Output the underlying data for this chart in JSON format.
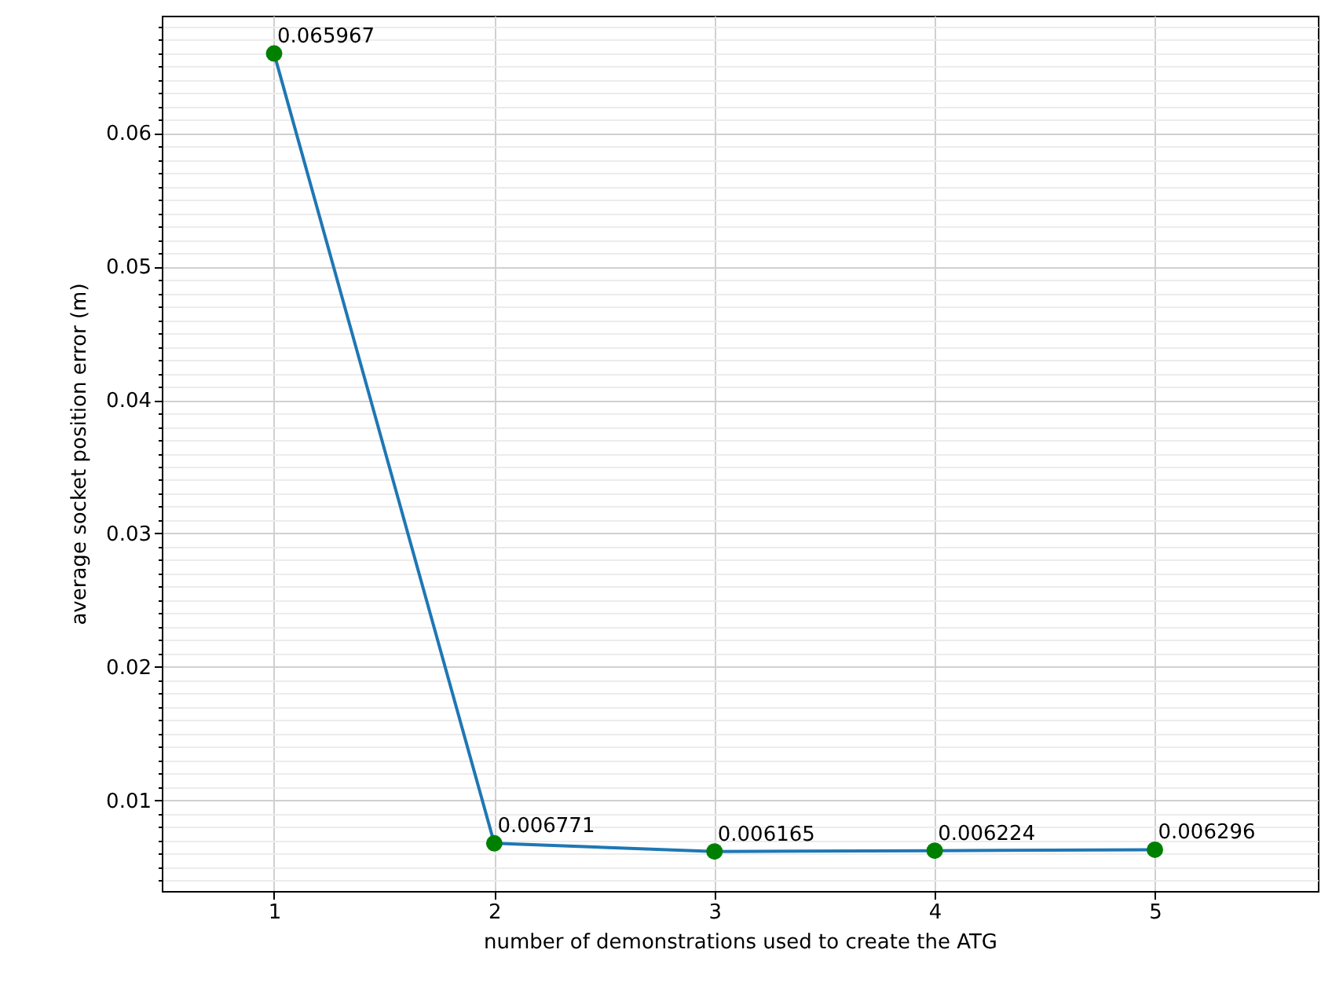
{
  "chart_data": {
    "type": "line",
    "xlabel": "number of demonstrations used to create the ATG",
    "ylabel": "average socket position error (m)",
    "x": [
      1,
      2,
      3,
      4,
      5
    ],
    "series": [
      {
        "color": "#1f77b4",
        "colors": [
          "#008000",
          "#008000",
          "#008000",
          "#008000",
          "#008000"
        ],
        "values": [
          0.065967,
          0.006771,
          0.006165,
          0.006224,
          0.006296
        ]
      }
    ],
    "marker": "circle",
    "data_labels": true,
    "grid": true,
    "xlim": [
      0.49,
      5.74
    ],
    "xticks": [
      1,
      2,
      3,
      4,
      5
    ],
    "ylim": [
      0.0032,
      0.0688
    ],
    "yticks": [
      {
        "value": 0.004,
        "label": null
      },
      {
        "value": 0.005,
        "label": null
      },
      {
        "value": 0.006,
        "label": null
      },
      {
        "value": 0.007,
        "label": null
      },
      {
        "value": 0.008,
        "label": null
      },
      {
        "value": 0.009,
        "label": null
      },
      0.01,
      {
        "value": 0.011,
        "label": null
      },
      {
        "value": 0.012,
        "label": null
      },
      {
        "value": 0.013,
        "label": null
      },
      {
        "value": 0.014,
        "label": null
      },
      {
        "value": 0.015,
        "label": null
      },
      {
        "value": 0.016,
        "label": null
      },
      {
        "value": 0.017,
        "label": null
      },
      {
        "value": 0.018,
        "label": null
      },
      {
        "value": 0.019,
        "label": null
      },
      0.02,
      {
        "value": 0.021,
        "label": null
      },
      {
        "value": 0.022,
        "label": null
      },
      {
        "value": 0.023,
        "label": null
      },
      {
        "value": 0.024,
        "label": null
      },
      {
        "value": 0.025,
        "label": null
      },
      {
        "value": 0.026,
        "label": null
      },
      {
        "value": 0.027,
        "label": null
      },
      {
        "value": 0.028,
        "label": null
      },
      {
        "value": 0.029,
        "label": null
      },
      0.03,
      {
        "value": 0.031,
        "label": null
      },
      {
        "value": 0.032,
        "label": null
      },
      {
        "value": 0.033,
        "label": null
      },
      {
        "value": 0.034,
        "label": null
      },
      {
        "value": 0.035,
        "label": null
      },
      {
        "value": 0.036,
        "label": null
      },
      {
        "value": 0.037,
        "label": null
      },
      {
        "value": 0.038,
        "label": null
      },
      {
        "value": 0.039,
        "label": null
      },
      0.04,
      {
        "value": 0.041,
        "label": null
      },
      {
        "value": 0.042,
        "label": null
      },
      {
        "value": 0.043,
        "label": null
      },
      {
        "value": 0.044,
        "label": null
      },
      {
        "value": 0.045,
        "label": null
      },
      {
        "value": 0.046,
        "label": null
      },
      {
        "value": 0.047,
        "label": null
      },
      {
        "value": 0.048,
        "label": null
      },
      {
        "value": 0.049,
        "label": null
      },
      0.05,
      {
        "value": 0.051,
        "label": null
      },
      {
        "value": 0.052,
        "label": null
      },
      {
        "value": 0.053,
        "label": null
      },
      {
        "value": 0.054,
        "label": null
      },
      {
        "value": 0.055,
        "label": null
      },
      {
        "value": 0.056,
        "label": null
      },
      {
        "value": 0.057,
        "label": null
      },
      {
        "value": 0.058,
        "label": null
      },
      {
        "value": 0.059,
        "label": null
      },
      0.06,
      {
        "value": 0.061,
        "label": null
      },
      {
        "value": 0.062,
        "label": null
      },
      {
        "value": 0.063,
        "label": null
      },
      {
        "value": 0.064,
        "label": null
      },
      {
        "value": 0.065,
        "label": null
      },
      {
        "value": 0.066,
        "label": null
      },
      {
        "value": 0.067,
        "label": null
      },
      {
        "value": 0.068,
        "label": null
      }
    ]
  }
}
